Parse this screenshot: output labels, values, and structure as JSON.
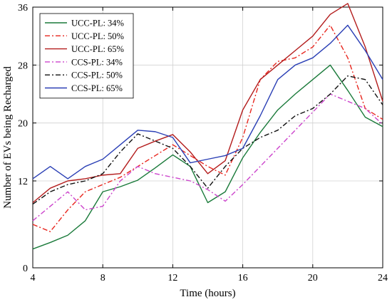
{
  "chart_data": {
    "type": "line",
    "xlabel": "Time (hours)",
    "ylabel": "Number of EVs being Recharged",
    "xlim": [
      4,
      24
    ],
    "ylim": [
      0,
      36
    ],
    "xticks": [
      4,
      8,
      12,
      16,
      20,
      24
    ],
    "yticks": [
      0,
      12,
      20,
      28,
      36
    ],
    "grid": true,
    "legend_position": "top-left",
    "x": [
      4,
      5,
      6,
      7,
      8,
      9,
      10,
      11,
      12,
      13,
      14,
      15,
      16,
      17,
      18,
      19,
      20,
      21,
      22,
      23,
      24
    ],
    "series": [
      {
        "name": "UCC-PL: 34%",
        "color": "#1a7a3a",
        "dash": "solid",
        "values": [
          2.6,
          3.5,
          4.5,
          6.5,
          10.5,
          11.2,
          12.1,
          13.8,
          15.6,
          14.0,
          9.0,
          10.5,
          15.2,
          18.7,
          21.8,
          24.0,
          26.0,
          28.0,
          24.5,
          20.8,
          19.5
        ]
      },
      {
        "name": "UCC-PL: 50%",
        "color": "#e8261e",
        "dash": "dashdot",
        "values": [
          6.0,
          5.0,
          8.0,
          10.5,
          11.5,
          12.5,
          14.0,
          15.5,
          17.0,
          15.5,
          14.0,
          12.8,
          18.0,
          26.0,
          28.5,
          29.0,
          30.5,
          33.5,
          29.0,
          22.0,
          20.5
        ]
      },
      {
        "name": "UCC-PL: 65%",
        "color": "#b31c1c",
        "dash": "solid",
        "values": [
          9.0,
          11.0,
          12.0,
          12.3,
          12.8,
          13.0,
          16.5,
          17.5,
          18.4,
          16.0,
          13.0,
          14.8,
          21.8,
          26.0,
          28.0,
          30.0,
          32.0,
          35.0,
          36.5,
          30.5,
          23.0
        ]
      },
      {
        "name": "CCS-PL: 34%",
        "color": "#cc44cc",
        "dash": "dashdot",
        "values": [
          6.5,
          8.5,
          10.5,
          8.0,
          8.5,
          12.0,
          14.0,
          13.0,
          12.5,
          12.0,
          10.8,
          9.2,
          11.5,
          14.0,
          16.5,
          19.0,
          21.5,
          24.0,
          23.0,
          22.0,
          19.8
        ]
      },
      {
        "name": "CCS-PL: 50%",
        "color": "#111111",
        "dash": "dashdot",
        "values": [
          8.8,
          10.5,
          11.5,
          12.0,
          13.0,
          16.0,
          18.5,
          17.5,
          16.5,
          14.0,
          11.0,
          14.0,
          16.5,
          18.0,
          19.0,
          21.0,
          22.0,
          24.0,
          26.5,
          26.0,
          22.5
        ]
      },
      {
        "name": "CCS-PL: 65%",
        "color": "#2a3fb5",
        "dash": "solid",
        "values": [
          12.3,
          14.0,
          12.3,
          14.0,
          15.0,
          17.0,
          19.0,
          18.8,
          18.0,
          14.5,
          15.0,
          15.5,
          16.5,
          21.0,
          26.0,
          28.0,
          29.0,
          31.0,
          33.5,
          30.0,
          26.0
        ]
      }
    ]
  }
}
